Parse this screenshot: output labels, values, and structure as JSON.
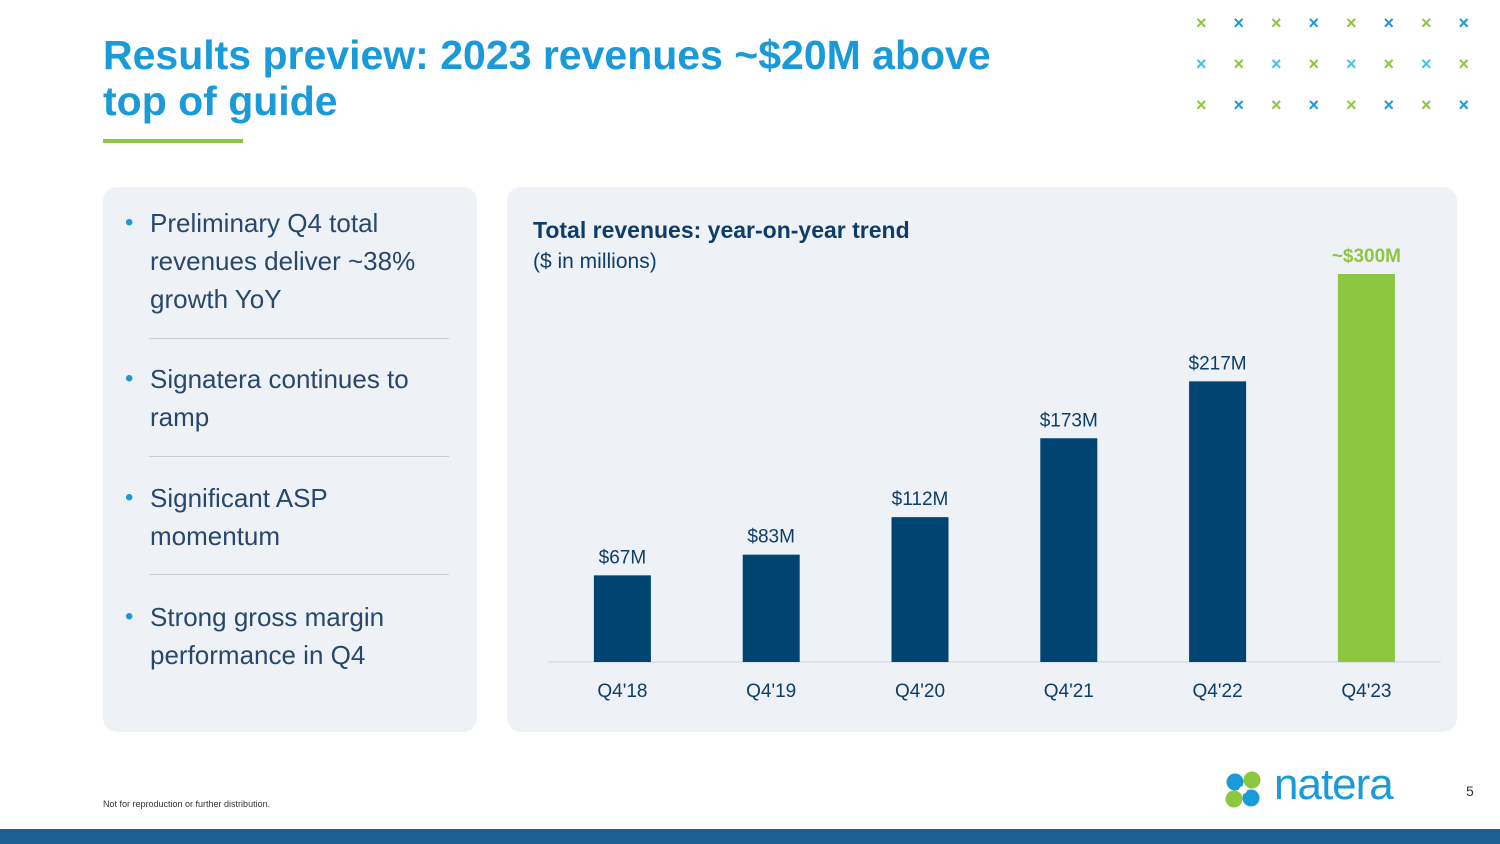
{
  "slide": {
    "title": "Results preview: 2023 revenues ~$20M above top of guide",
    "footer_note": "Not for reproduction or further distribution.",
    "page_number": "5",
    "logo_text": "natera",
    "colors": {
      "title": "#1a9ad6",
      "accent_green": "#8dc63f",
      "bar_blue": "#004471",
      "bar_green": "#8dc63f",
      "footer_bar": "#1b5f93"
    }
  },
  "bullets": [
    "Preliminary Q4 total revenues deliver ~38% growth YoY",
    "Signatera continues to ramp",
    "Significant ASP momentum",
    "Strong gross margin performance in Q4"
  ],
  "chart_data": {
    "type": "bar",
    "title": "Total revenues: year-on-year trend",
    "subtitle": "($ in millions)",
    "categories": [
      "Q4'18",
      "Q4'19",
      "Q4'20",
      "Q4'21",
      "Q4'22",
      "Q4'23"
    ],
    "values": [
      67,
      83,
      112,
      173,
      217,
      300
    ],
    "data_labels": [
      "$67M",
      "$83M",
      "$112M",
      "$173M",
      "$217M",
      "~$300M"
    ],
    "highlight_index": 5,
    "ylim": [
      0,
      300
    ],
    "grid": false,
    "legend": "none"
  }
}
